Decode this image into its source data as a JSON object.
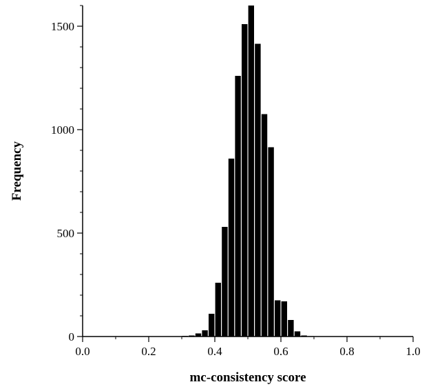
{
  "chart_data": {
    "type": "bar",
    "title": "",
    "xlabel": "mc-consistency score",
    "ylabel": "Frequency",
    "xlim": [
      0.0,
      1.0
    ],
    "ylim": [
      0,
      1600
    ],
    "xticks": [
      "0.0",
      "0.2",
      "0.4",
      "0.6",
      "0.8",
      "1.0"
    ],
    "yticks": [
      "0",
      "500",
      "1000",
      "1500"
    ],
    "bin_width": 0.02,
    "bins": [
      {
        "x": 0.3,
        "value": 3
      },
      {
        "x": 0.32,
        "value": 5
      },
      {
        "x": 0.34,
        "value": 15
      },
      {
        "x": 0.36,
        "value": 30
      },
      {
        "x": 0.38,
        "value": 110
      },
      {
        "x": 0.4,
        "value": 260
      },
      {
        "x": 0.42,
        "value": 530
      },
      {
        "x": 0.44,
        "value": 860
      },
      {
        "x": 0.46,
        "value": 1260
      },
      {
        "x": 0.48,
        "value": 1510
      },
      {
        "x": 0.5,
        "value": 1600
      },
      {
        "x": 0.52,
        "value": 1415
      },
      {
        "x": 0.54,
        "value": 1075
      },
      {
        "x": 0.56,
        "value": 915
      },
      {
        "x": 0.58,
        "value": 175
      },
      {
        "x": 0.6,
        "value": 170
      },
      {
        "x": 0.62,
        "value": 80
      },
      {
        "x": 0.64,
        "value": 25
      },
      {
        "x": 0.66,
        "value": 5
      },
      {
        "x": 0.68,
        "value": 2
      }
    ],
    "grid": false,
    "bar_color": "#000000"
  }
}
